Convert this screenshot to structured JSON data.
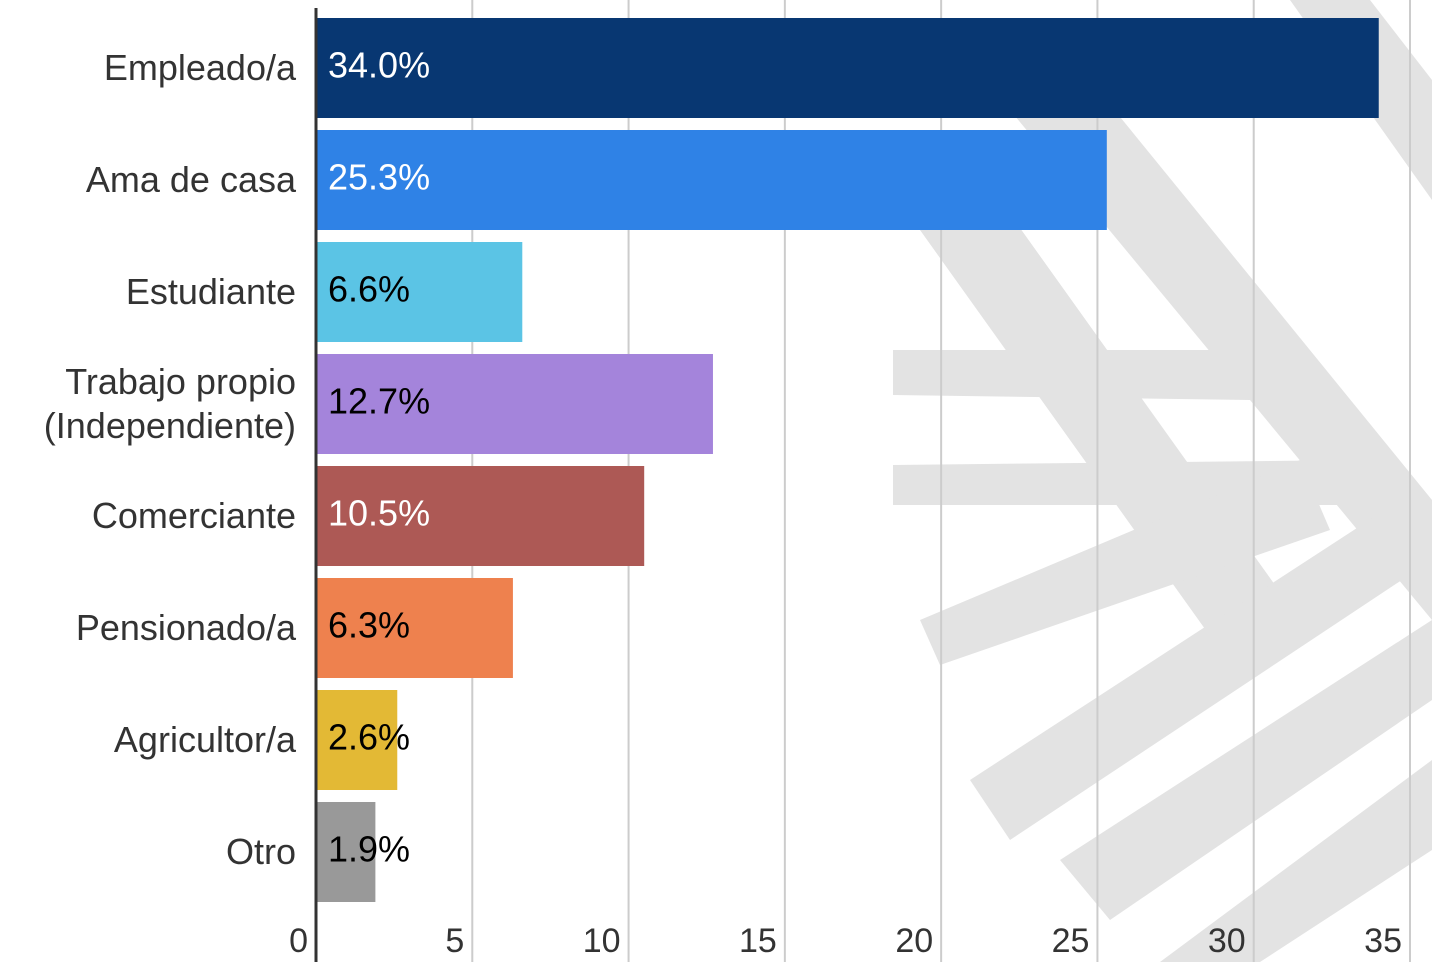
{
  "chart_data": {
    "type": "bar",
    "orientation": "horizontal",
    "categories": [
      "Empleado/a",
      "Ama de casa",
      "Estudiante",
      "Trabajo propio\n(Independiente)",
      "Comerciante",
      "Pensionado/a",
      "Agricultor/a",
      "Otro"
    ],
    "values": [
      34.0,
      25.3,
      6.6,
      12.7,
      10.5,
      6.3,
      2.6,
      1.9
    ],
    "value_labels": [
      "34.0%",
      "25.3%",
      "6.6%",
      "12.7%",
      "10.5%",
      "6.3%",
      "2.6%",
      "1.9%"
    ],
    "colors": [
      "#083772",
      "#2f82e6",
      "#5bc4e5",
      "#a484db",
      "#ad5955",
      "#ee814e",
      "#e3b935",
      "#999999"
    ],
    "label_colors": [
      "#ffffff",
      "#ffffff",
      "#000000",
      "#000000",
      "#ffffff",
      "#000000",
      "#000000",
      "#000000"
    ],
    "xlim": [
      0,
      35
    ],
    "xticks": [
      0,
      5,
      10,
      15,
      20,
      25,
      30,
      35
    ],
    "grid": true
  }
}
